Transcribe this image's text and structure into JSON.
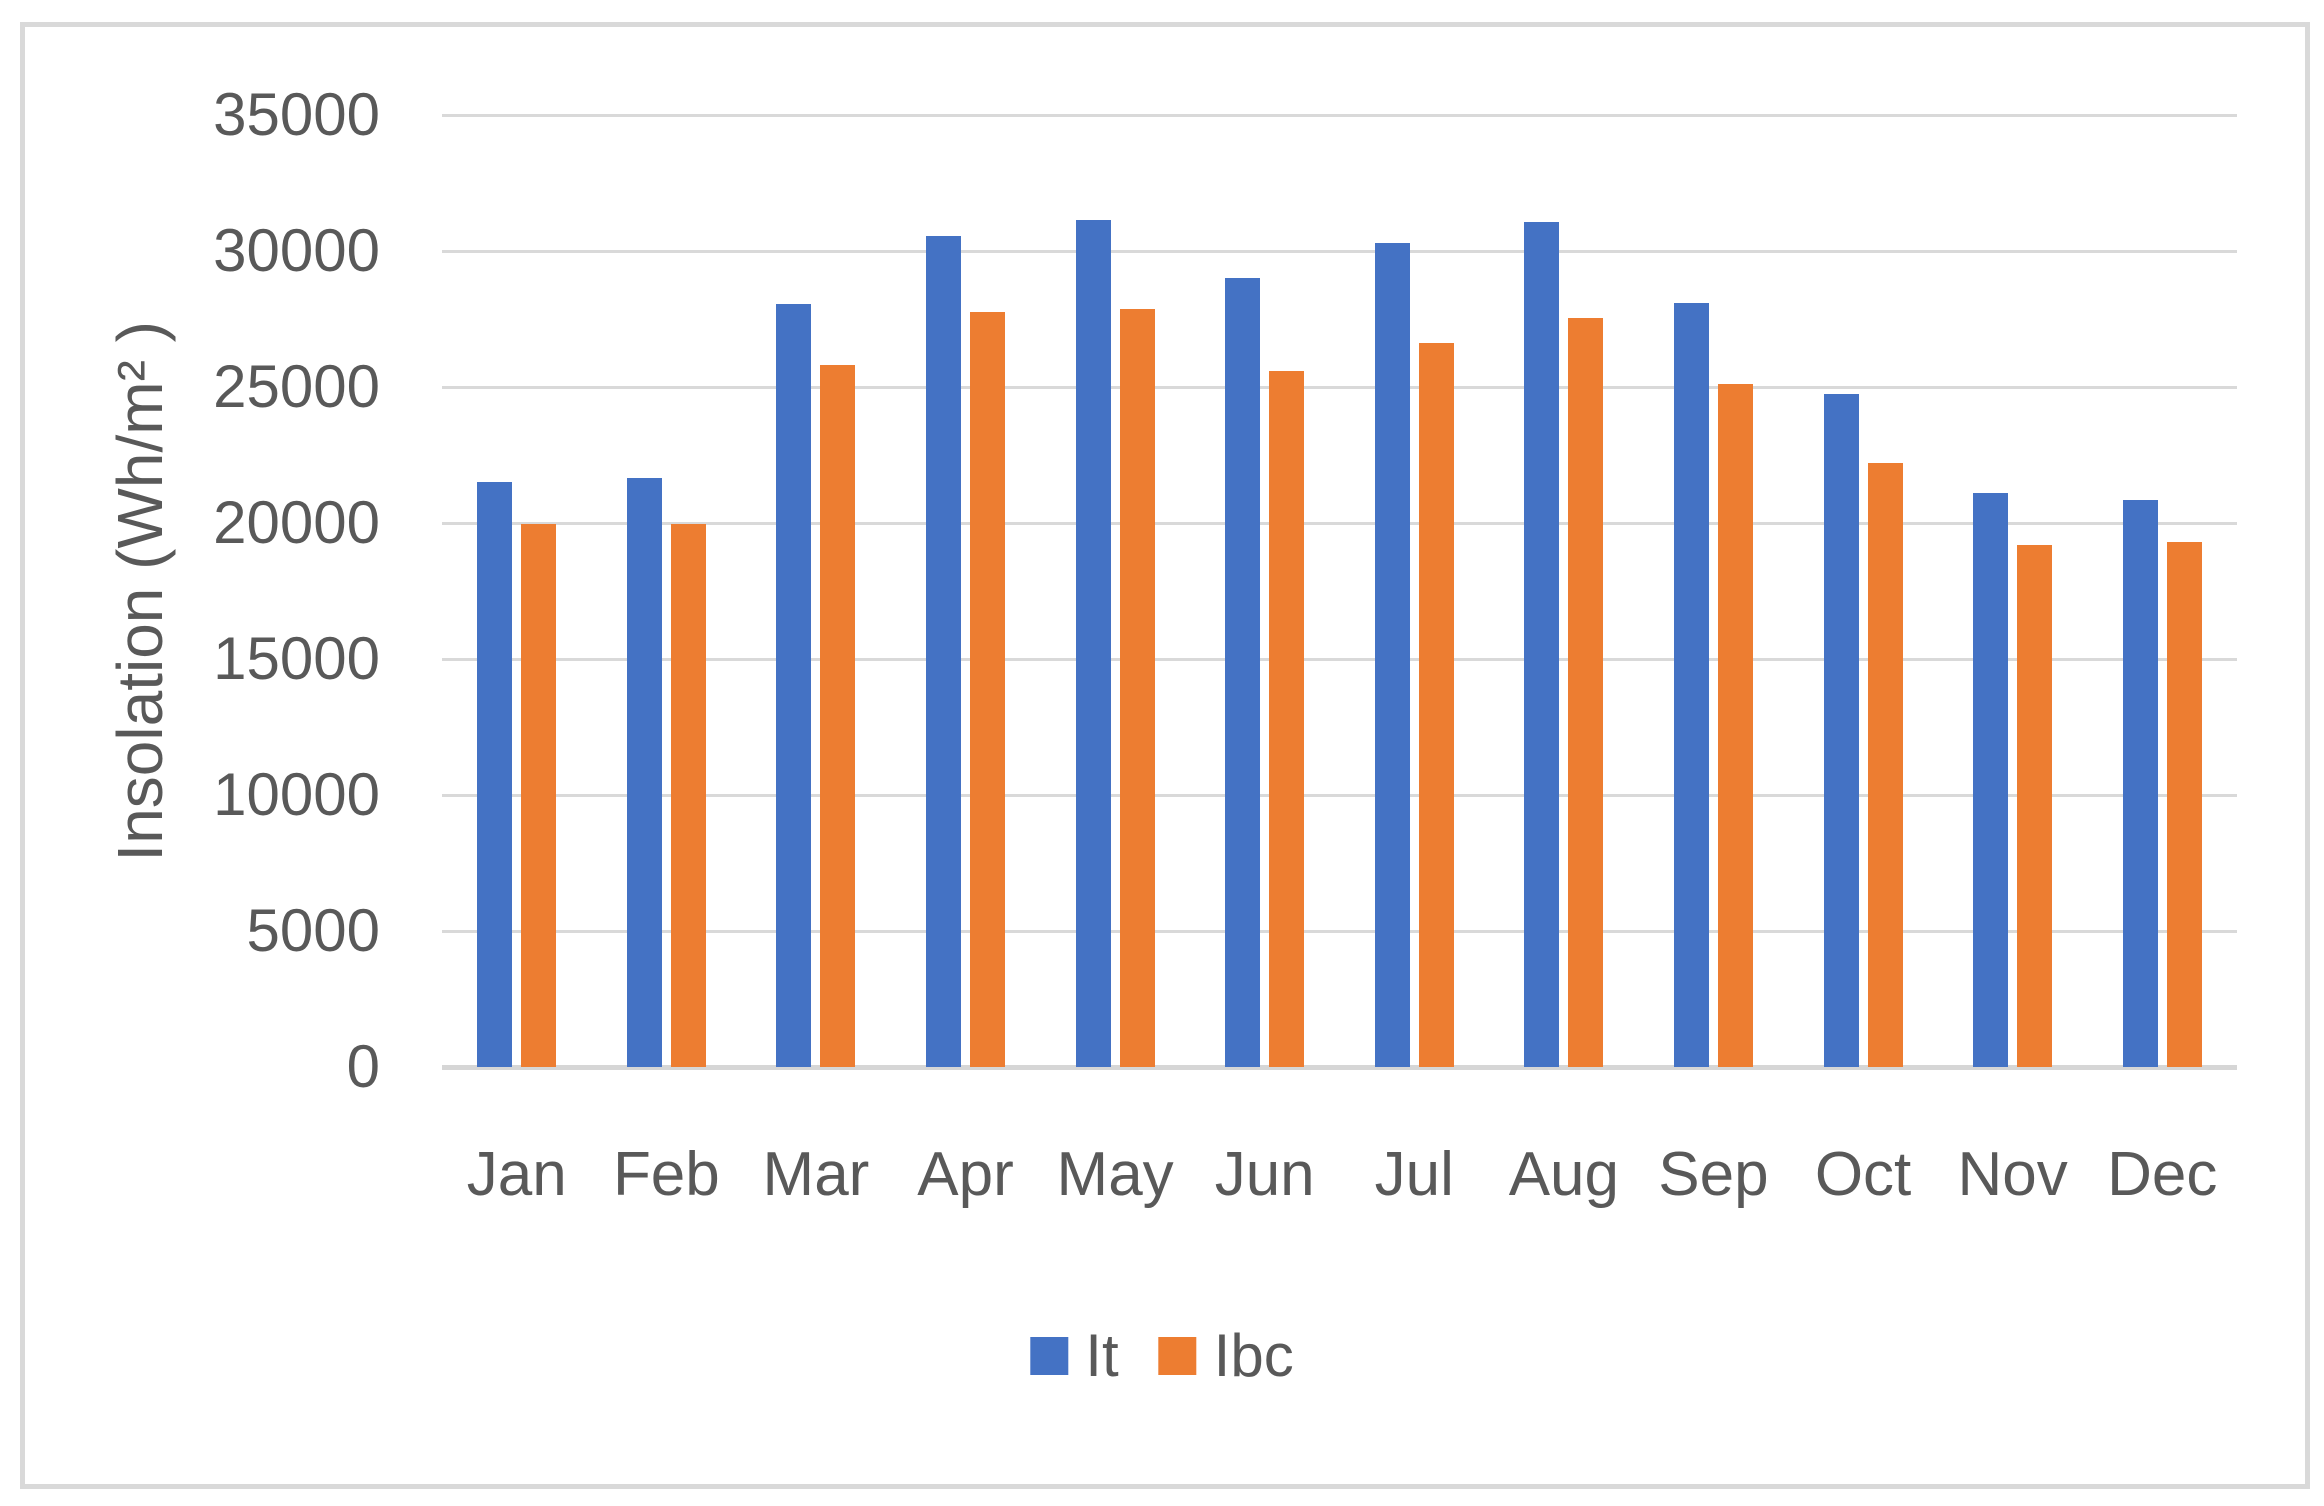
{
  "chart_data": {
    "type": "bar",
    "title": "",
    "categories": [
      "Jan",
      "Feb",
      "Mar",
      "Apr",
      "May",
      "Jun",
      "Jul",
      "Aug",
      "Sep",
      "Oct",
      "Nov",
      "Dec"
    ],
    "series": [
      {
        "name": "It",
        "color": "#4472C4",
        "values": [
          21500,
          21650,
          28050,
          30550,
          31150,
          29000,
          30300,
          31050,
          28100,
          24750,
          21100,
          20850
        ]
      },
      {
        "name": "Ibc",
        "color": "#ED7D31",
        "values": [
          19950,
          19950,
          25800,
          27750,
          27850,
          25600,
          26600,
          27550,
          25100,
          22200,
          19200,
          19300
        ]
      }
    ],
    "xlabel": "",
    "ylabel": "Insolation (Wh/m² )",
    "ylim": [
      0,
      35000
    ],
    "ytick_step": 5000,
    "yticks": [
      0,
      5000,
      10000,
      15000,
      20000,
      25000,
      30000,
      35000
    ],
    "grid": "horizontal-only",
    "legend_position": "bottom-center",
    "colors": {
      "axis_text": "#595959",
      "gridline": "#D9D9D9",
      "frame_border": "#D9D9D9",
      "background": "#FFFFFF"
    }
  }
}
